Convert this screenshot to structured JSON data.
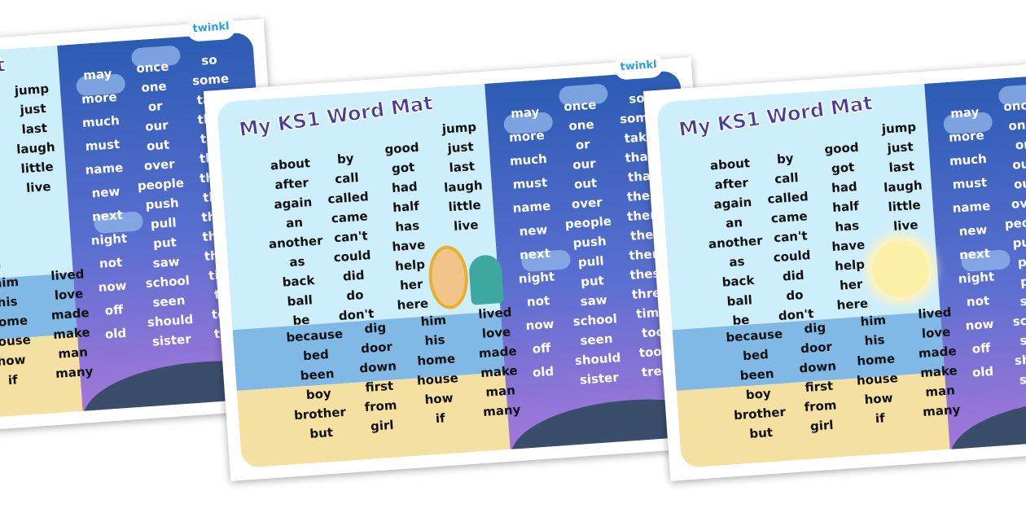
{
  "mat": {
    "title": "My KS1 Word Mat",
    "logo": "twinkl",
    "sky_words": [
      [
        "about",
        "after",
        "again",
        "an",
        "another",
        "as",
        "back",
        "ball",
        "be"
      ],
      [
        "by",
        "call",
        "called",
        "came",
        "can't",
        "could",
        "did",
        "do",
        "don't"
      ],
      [
        "good",
        "got",
        "had",
        "half",
        "has",
        "have",
        "help",
        "her",
        "here"
      ],
      [
        "jump",
        "just",
        "last",
        "laugh",
        "little",
        "live"
      ]
    ],
    "lower_words": [
      [
        "because",
        "bed",
        "been",
        "boy",
        "brother",
        "but"
      ],
      [
        "dig",
        "door",
        "down",
        "first",
        "from",
        "girl"
      ],
      [
        "him",
        "his",
        "home",
        "house",
        "how",
        "if"
      ],
      [
        "lived",
        "love",
        "made",
        "make",
        "man",
        "many"
      ]
    ],
    "night_words": [
      [
        "may",
        "more",
        "much",
        "must",
        "name",
        "new",
        "next",
        "night",
        "not",
        "now",
        "off",
        "old"
      ],
      [
        "once",
        "one",
        "or",
        "our",
        "out",
        "over",
        "people",
        "push",
        "pull",
        "put",
        "saw",
        "school",
        "seen",
        "should",
        "sister"
      ],
      [
        "so",
        "some",
        "take",
        "than",
        "that",
        "their",
        "them",
        "then",
        "there",
        "these",
        "three",
        "time",
        "too",
        "took",
        "tree"
      ]
    ]
  }
}
